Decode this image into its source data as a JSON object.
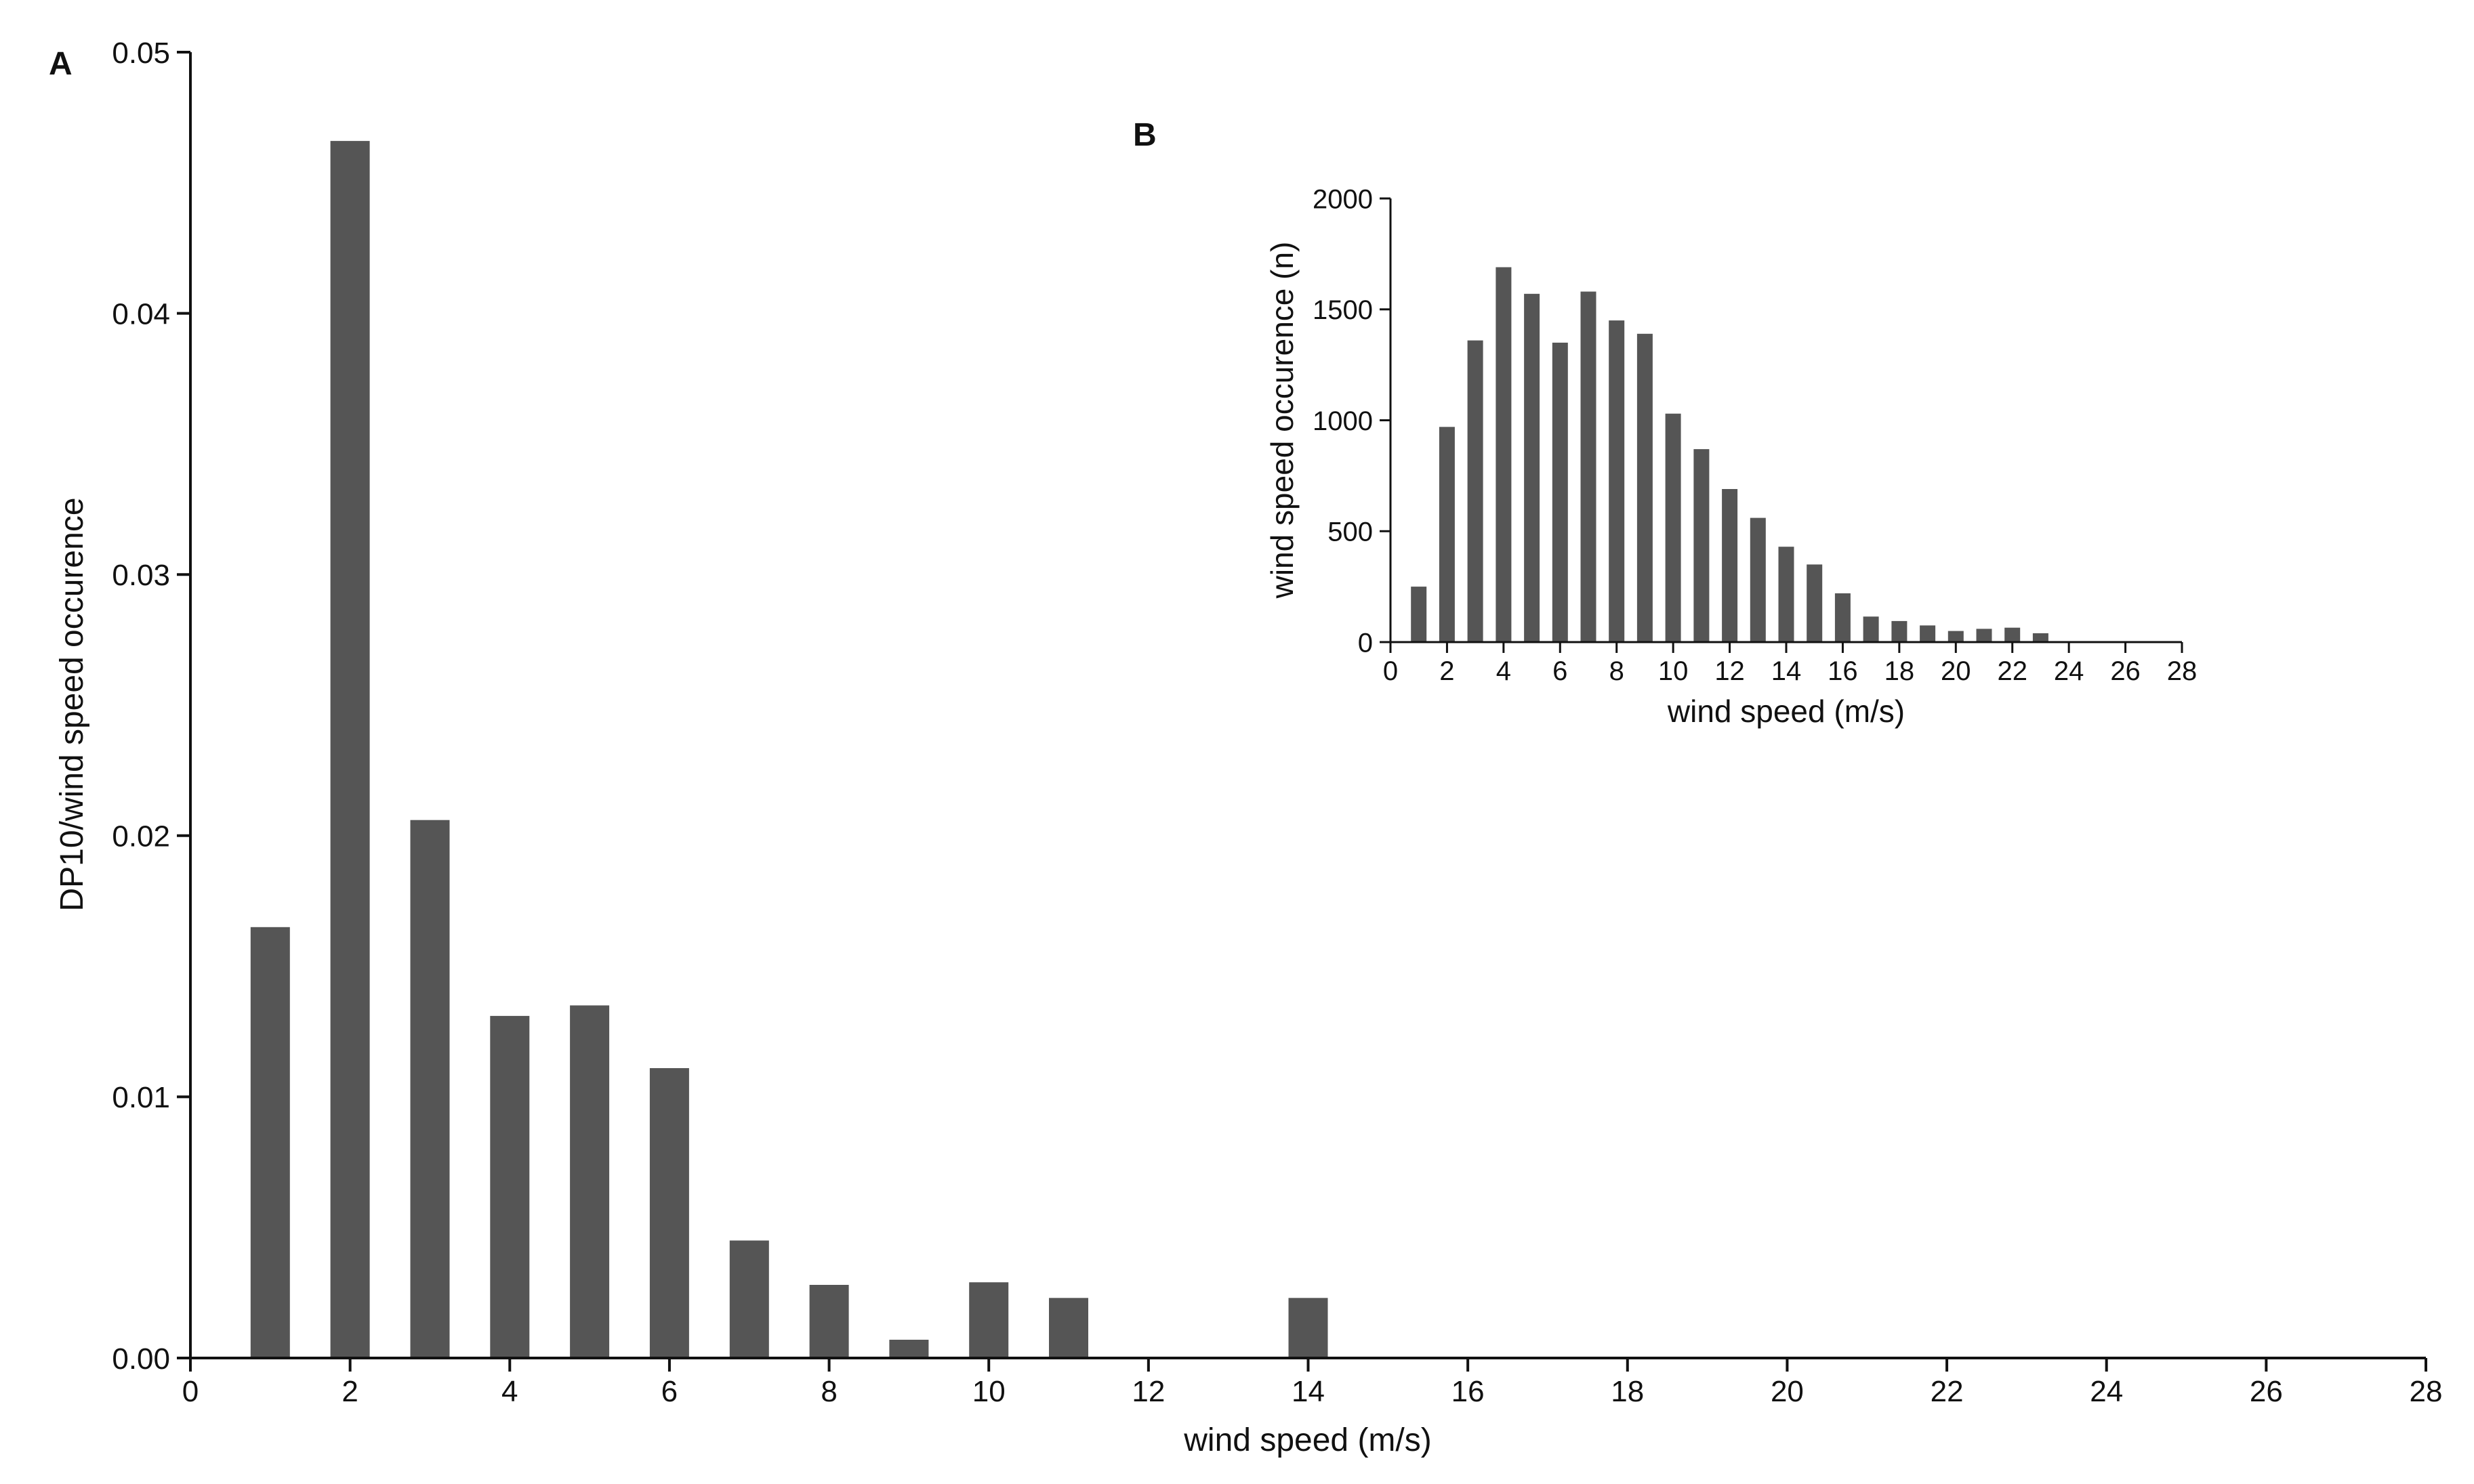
{
  "colors": {
    "bar": "#555555",
    "axis": "#111111",
    "background": "#ffffff"
  },
  "chart_data": [
    {
      "panel": "A",
      "type": "bar",
      "title": "",
      "xlabel": "wind speed (m/s)",
      "ylabel": "DP10/wind speed occurence",
      "xlim": [
        0,
        28
      ],
      "ylim": [
        0,
        0.05
      ],
      "grid": false,
      "xticks": [
        0,
        2,
        4,
        6,
        8,
        10,
        12,
        14,
        16,
        18,
        20,
        22,
        24,
        26,
        28
      ],
      "xtick_labels": [
        "0",
        "2",
        "4",
        "6",
        "8",
        "10",
        "12",
        "14",
        "16",
        "18",
        "20",
        "22",
        "24",
        "26",
        "28"
      ],
      "yticks": [
        0,
        0.01,
        0.02,
        0.03,
        0.04,
        0.05
      ],
      "ytick_labels": [
        "0.00",
        "0.01",
        "0.02",
        "0.03",
        "0.04",
        "0.05"
      ],
      "x": [
        1,
        2,
        3,
        4,
        5,
        6,
        7,
        8,
        9,
        10,
        11,
        14
      ],
      "values": [
        0.0165,
        0.0466,
        0.0206,
        0.0131,
        0.0135,
        0.0111,
        0.0045,
        0.0028,
        0.0007,
        0.0029,
        0.0023,
        0.0023
      ]
    },
    {
      "panel": "B",
      "type": "bar",
      "title": "",
      "xlabel": "wind speed (m/s)",
      "ylabel": "wind speed occurence (n)",
      "xlim": [
        0,
        28
      ],
      "ylim": [
        0,
        2000
      ],
      "grid": false,
      "xticks": [
        0,
        2,
        4,
        6,
        8,
        10,
        12,
        14,
        16,
        18,
        20,
        22,
        24,
        26,
        28
      ],
      "xtick_labels": [
        "0",
        "2",
        "4",
        "6",
        "8",
        "10",
        "12",
        "14",
        "16",
        "18",
        "20",
        "22",
        "24",
        "26",
        "28"
      ],
      "yticks": [
        0,
        500,
        1000,
        1500,
        2000
      ],
      "ytick_labels": [
        "0",
        "500",
        "1000",
        "1500",
        "2000"
      ],
      "x": [
        1,
        2,
        3,
        4,
        5,
        6,
        7,
        8,
        9,
        10,
        11,
        12,
        13,
        14,
        15,
        16,
        17,
        18,
        19,
        20,
        21,
        22,
        23
      ],
      "values": [
        250,
        970,
        1360,
        1690,
        1570,
        1350,
        1580,
        1450,
        1390,
        1030,
        870,
        690,
        560,
        430,
        350,
        220,
        115,
        95,
        75,
        50,
        60,
        65,
        40
      ]
    }
  ]
}
